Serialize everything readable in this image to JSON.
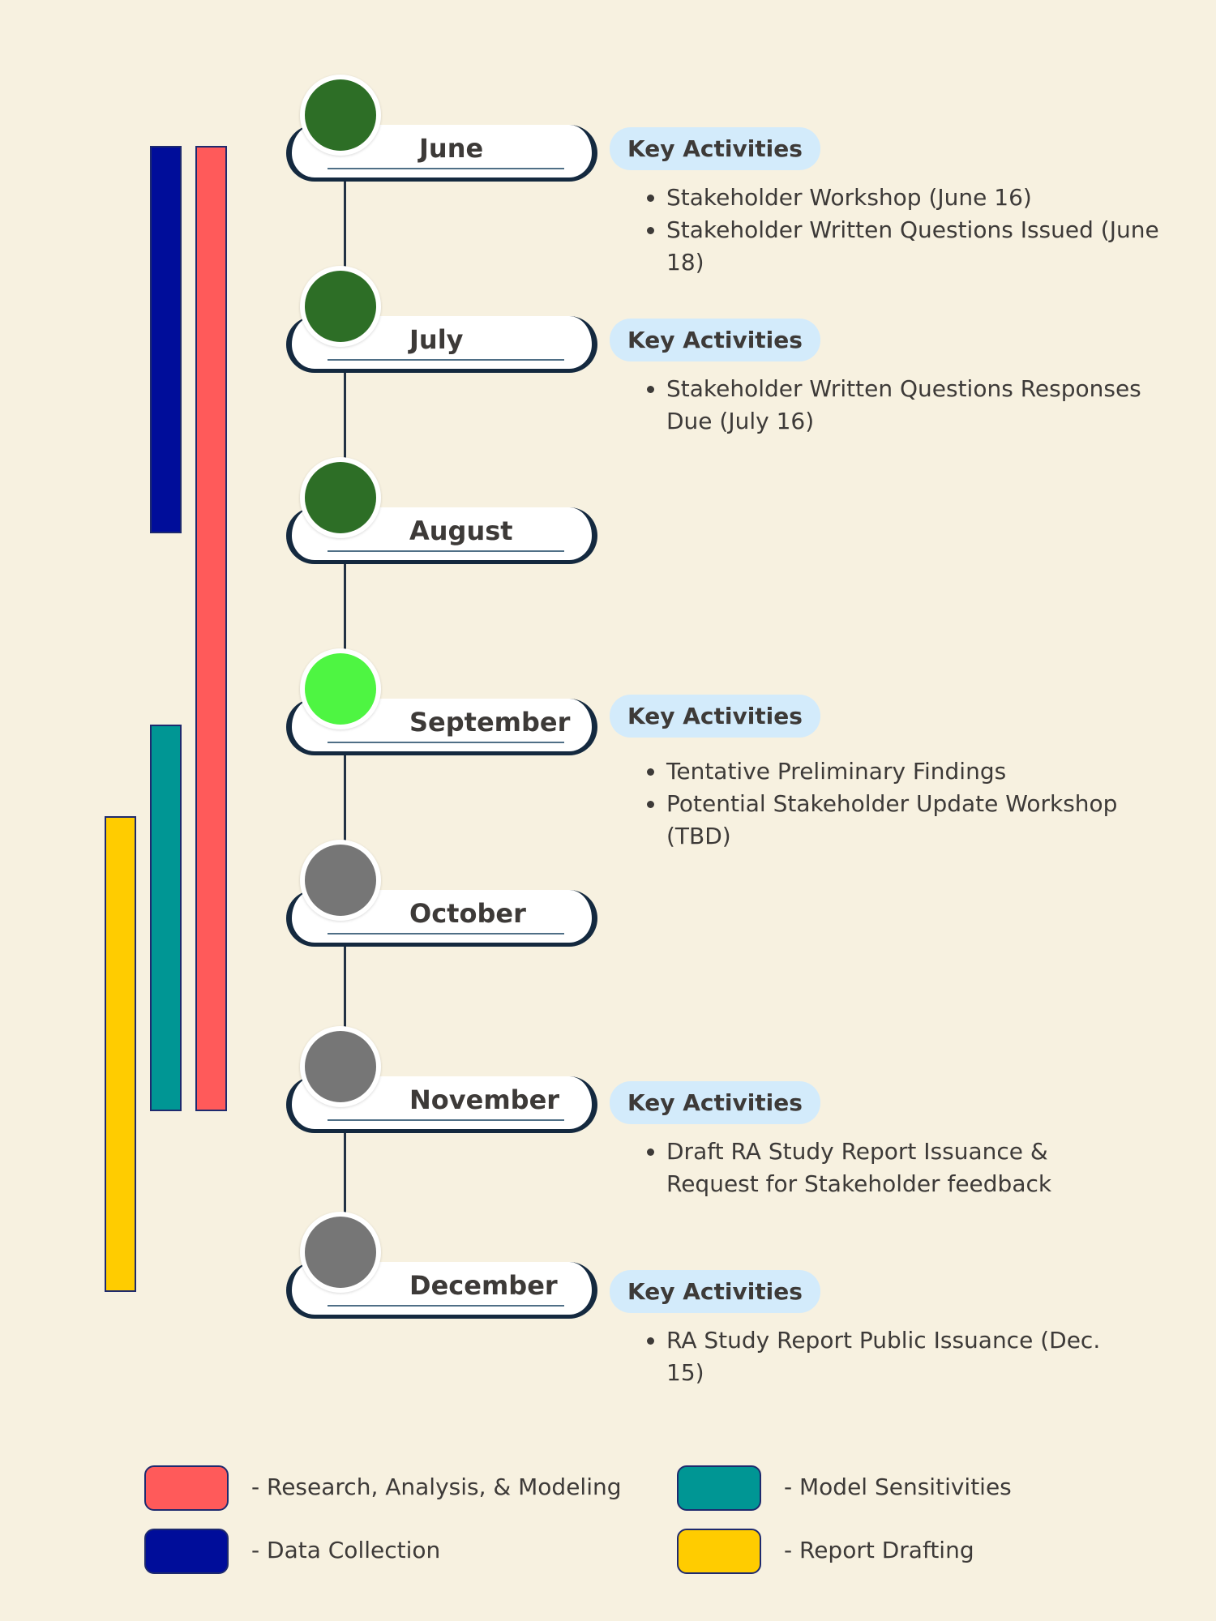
{
  "phases": [
    {
      "name": "Data Collection",
      "color": "#000d9a"
    },
    {
      "name": "Research, Analysis, & Modeling",
      "color": "#ff5a5a"
    },
    {
      "name": "Model Sensitivities",
      "color": "#009694"
    },
    {
      "name": "Report Drafting",
      "color": "#ffcc00"
    }
  ],
  "months": [
    {
      "label": "June",
      "status_color": "#2d6e26"
    },
    {
      "label": "July",
      "status_color": "#2d6e26"
    },
    {
      "label": "August",
      "status_color": "#2d6e26"
    },
    {
      "label": "September",
      "status_color": "#4ef542"
    },
    {
      "label": "October",
      "status_color": "#767676"
    },
    {
      "label": "November",
      "status_color": "#767676"
    },
    {
      "label": "December",
      "status_color": "#767676"
    }
  ],
  "key_activities": {
    "heading": "Key Activities",
    "june": [
      "Stakeholder Workshop (June 16)",
      "Stakeholder Written Questions Issued (June 18)"
    ],
    "july": [
      "Stakeholder Written Questions Responses Due (July 16)"
    ],
    "september": [
      "Tentative Preliminary Findings",
      "Potential Stakeholder Update Workshop (TBD)"
    ],
    "november": [
      "Draft RA Study Report Issuance & Request for Stakeholder feedback"
    ],
    "december": [
      "RA Study Report Public Issuance (Dec. 15)"
    ]
  },
  "legend": [
    {
      "label": "- Research, Analysis, & Modeling",
      "color": "#ff5a5a"
    },
    {
      "label": "- Model Sensitivities",
      "color": "#009694"
    },
    {
      "label": "- Data Collection",
      "color": "#000d9a"
    },
    {
      "label": "- Report Drafting",
      "color": "#ffcc00"
    }
  ]
}
